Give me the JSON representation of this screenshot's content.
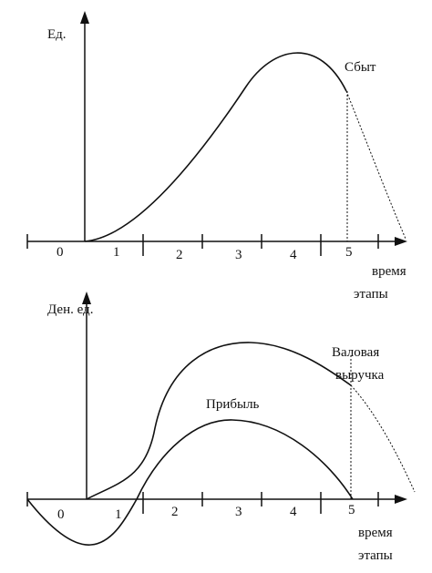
{
  "top": {
    "y_label": "Ед.",
    "curve_label": "Сбыт",
    "stage_labels": [
      "0",
      "1",
      "2",
      "3",
      "4",
      "5"
    ],
    "x_label": [
      "время",
      "этапы"
    ]
  },
  "bottom": {
    "y_label": "Ден. ед.",
    "curve_labels": [
      "Валовая",
      "выручка",
      "Прибыль"
    ],
    "stage_labels": [
      "0",
      "1",
      "2",
      "3",
      "4",
      "5"
    ],
    "x_label": [
      "время",
      "этапы"
    ]
  }
}
